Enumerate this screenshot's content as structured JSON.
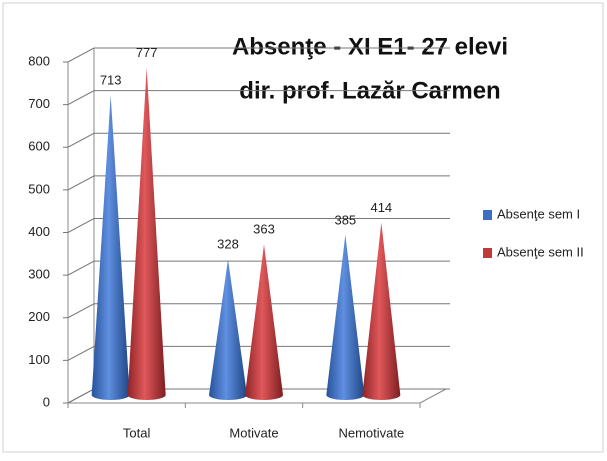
{
  "chart_data": {
    "type": "cone",
    "title": "Absenţe - XI E1- 27 elevi",
    "subtitle": "dir. prof.  Lazăr Carmen",
    "categories": [
      "Total",
      "Motivate",
      "Nemotivate"
    ],
    "series": [
      {
        "name": "Absenţe sem I",
        "color": "#3a6fc4",
        "values": [
          713,
          328,
          385
        ]
      },
      {
        "name": "Absenţe sem II",
        "color": "#c0393b",
        "values": [
          777,
          363,
          414
        ]
      }
    ],
    "ylim": [
      0,
      800
    ],
    "yticks": [
      0,
      100,
      200,
      300,
      400,
      500,
      600,
      700,
      800
    ],
    "grid": true,
    "legend": "right"
  }
}
